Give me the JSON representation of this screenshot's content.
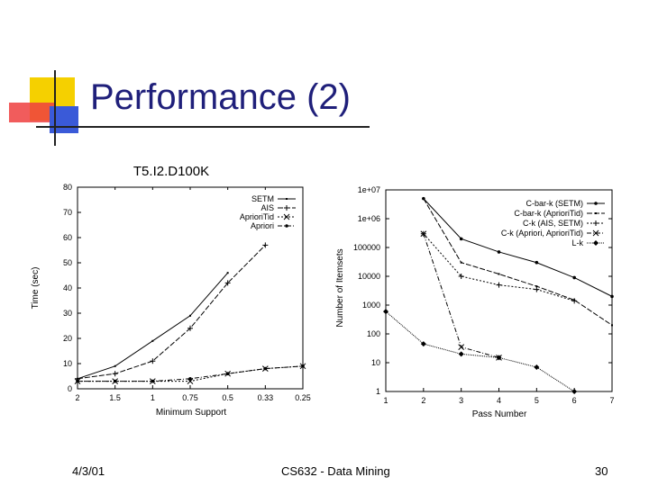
{
  "slide": {
    "title": "Performance (2)",
    "footer_date": "4/3/01",
    "footer_course": "CS632 - Data Mining",
    "footer_page": "30"
  },
  "colors": {
    "title": "#1f1f7a",
    "accent_yellow": "#f5d000",
    "accent_red": "#ee4040",
    "accent_blue": "#3a5ad8"
  },
  "chart_data": [
    {
      "type": "line",
      "title": "T5.I2.D100K",
      "xlabel": "Minimum Support",
      "ylabel": "Time (sec)",
      "categories": [
        "2",
        "1.5",
        "1",
        "0.75",
        "0.5",
        "0.33",
        "0.25"
      ],
      "yticks": [
        "0",
        "10",
        "20",
        "30",
        "40",
        "50",
        "60",
        "70",
        "80"
      ],
      "ylim": [
        0,
        80
      ],
      "legend_position": "top-right",
      "series": [
        {
          "name": "SETM",
          "marker": "none",
          "values": [
            4,
            9,
            19,
            29,
            46,
            null,
            null
          ]
        },
        {
          "name": "AIS",
          "marker": "plus",
          "values": [
            4,
            6,
            11,
            24,
            42,
            57,
            null
          ]
        },
        {
          "name": "AprioriTid",
          "marker": "cross",
          "values": [
            3,
            3,
            3,
            3,
            6,
            8,
            9
          ]
        },
        {
          "name": "Apriori",
          "marker": "dot",
          "values": [
            3,
            3,
            3,
            4,
            6,
            8,
            9
          ]
        }
      ]
    },
    {
      "type": "line",
      "title": "",
      "xlabel": "Pass Number",
      "ylabel": "Number of Itemsets",
      "x": [
        1,
        2,
        3,
        4,
        5,
        6,
        7
      ],
      "yscale": "log",
      "yticks": [
        "1e+07",
        "1e+06",
        "100000",
        "10000",
        "1000",
        "100",
        "10",
        "1"
      ],
      "ylim": [
        1,
        10000000
      ],
      "legend_position": "top-right",
      "series": [
        {
          "name": "C-bar-k (SETM)",
          "marker": "dot",
          "values": [
            null,
            5000000,
            200000,
            70000,
            30000,
            9000,
            2000
          ]
        },
        {
          "name": "C-bar-k (AprioriTid)",
          "marker": "none",
          "values": [
            null,
            5000000,
            30000,
            12000,
            4500,
            1500,
            200
          ]
        },
        {
          "name": "C-k (AIS, SETM)",
          "marker": "plus",
          "values": [
            null,
            300000,
            10000,
            5000,
            3500,
            1400,
            null
          ]
        },
        {
          "name": "C-k (Apriori, AprioriTid)",
          "marker": "cross",
          "values": [
            null,
            300000,
            35,
            15,
            null,
            null,
            null
          ]
        },
        {
          "name": "L-k",
          "marker": "diamond",
          "values": [
            600,
            45,
            20,
            15,
            7,
            1,
            null
          ]
        }
      ]
    }
  ]
}
